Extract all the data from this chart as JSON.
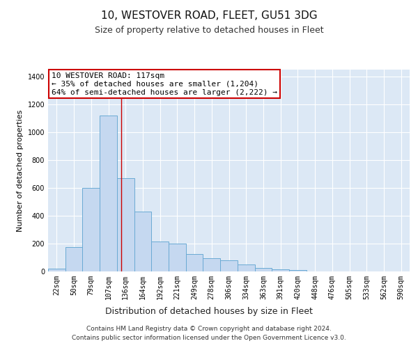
{
  "title1": "10, WESTOVER ROAD, FLEET, GU51 3DG",
  "title2": "Size of property relative to detached houses in Fleet",
  "xlabel": "Distribution of detached houses by size in Fleet",
  "ylabel": "Number of detached properties",
  "bar_color": "#c5d8f0",
  "bar_edge_color": "#6aaad4",
  "bg_color": "#dce8f5",
  "grid_color": "#ffffff",
  "categories": [
    "22sqm",
    "50sqm",
    "79sqm",
    "107sqm",
    "136sqm",
    "164sqm",
    "192sqm",
    "221sqm",
    "249sqm",
    "278sqm",
    "306sqm",
    "334sqm",
    "363sqm",
    "391sqm",
    "420sqm",
    "448sqm",
    "476sqm",
    "505sqm",
    "533sqm",
    "562sqm",
    "590sqm"
  ],
  "values": [
    20,
    175,
    600,
    1120,
    670,
    430,
    215,
    200,
    125,
    95,
    80,
    50,
    25,
    15,
    10,
    0,
    0,
    0,
    0,
    0,
    0
  ],
  "ylim": [
    0,
    1450
  ],
  "yticks": [
    0,
    200,
    400,
    600,
    800,
    1000,
    1200,
    1400
  ],
  "annotation_line1": "10 WESTOVER ROAD: 117sqm",
  "annotation_line2": "← 35% of detached houses are smaller (1,204)",
  "annotation_line3": "64% of semi-detached houses are larger (2,222) →",
  "vline_x": 3.75,
  "footer1": "Contains HM Land Registry data © Crown copyright and database right 2024.",
  "footer2": "Contains public sector information licensed under the Open Government Licence v3.0.",
  "title1_fontsize": 11,
  "title2_fontsize": 9,
  "annotation_fontsize": 8,
  "tick_fontsize": 7,
  "ylabel_fontsize": 8,
  "xlabel_fontsize": 9,
  "footer_fontsize": 6.5
}
